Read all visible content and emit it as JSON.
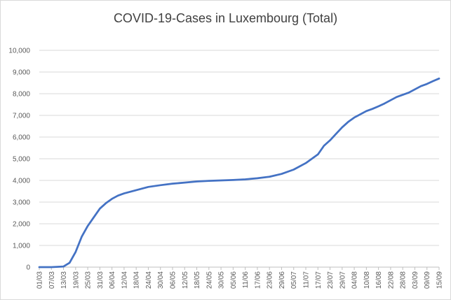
{
  "chart_data": {
    "type": "line",
    "title": "COVID-19-Cases in Luxembourg (Total)",
    "xlabel": "",
    "ylabel": "",
    "ylim": [
      0,
      10000
    ],
    "yticks": [
      0,
      1000,
      2000,
      3000,
      4000,
      5000,
      6000,
      7000,
      8000,
      9000,
      10000
    ],
    "ytick_labels": [
      "0",
      "1,000",
      "2,000",
      "3,000",
      "4,000",
      "5,000",
      "6,000",
      "7,000",
      "8,000",
      "9,000",
      "10,000"
    ],
    "xtick_labels": [
      "01/03",
      "07/03",
      "13/03",
      "19/03",
      "25/03",
      "31/03",
      "06/04",
      "12/04",
      "18/04",
      "24/04",
      "30/04",
      "06/05",
      "12/05",
      "18/05",
      "24/05",
      "30/05",
      "05/06",
      "11/06",
      "17/06",
      "23/06",
      "29/06",
      "05/07",
      "11/07",
      "17/07",
      "23/07",
      "29/07",
      "04/08",
      "10/08",
      "16/08",
      "22/08",
      "28/08",
      "03/09",
      "09/09",
      "15/09"
    ],
    "grid": true,
    "legend": "none",
    "line_color": "#4472c4",
    "series": [
      {
        "x": [
          "01/03",
          "07/03",
          "13/03",
          "16/03",
          "19/03",
          "22/03",
          "25/03",
          "28/03",
          "31/03",
          "03/04",
          "06/04",
          "09/04",
          "12/04",
          "18/04",
          "24/04",
          "30/04",
          "06/05",
          "12/05",
          "18/05",
          "24/05",
          "30/05",
          "05/06",
          "11/06",
          "17/06",
          "23/06",
          "29/06",
          "05/07",
          "11/07",
          "17/07",
          "20/07",
          "23/07",
          "26/07",
          "29/07",
          "01/08",
          "04/08",
          "07/08",
          "10/08",
          "13/08",
          "16/08",
          "19/08",
          "22/08",
          "25/08",
          "28/08",
          "31/08",
          "03/09",
          "06/09",
          "09/09",
          "12/09",
          "15/09"
        ],
        "values": [
          0,
          0,
          30,
          200,
          700,
          1400,
          1900,
          2300,
          2700,
          2950,
          3150,
          3300,
          3400,
          3550,
          3700,
          3780,
          3850,
          3900,
          3950,
          3980,
          4000,
          4020,
          4050,
          4100,
          4170,
          4300,
          4500,
          4800,
          5200,
          5600,
          5850,
          6150,
          6450,
          6700,
          6900,
          7050,
          7200,
          7300,
          7420,
          7550,
          7700,
          7850,
          7950,
          8050,
          8200,
          8350,
          8450,
          8580,
          8700
        ]
      }
    ]
  }
}
